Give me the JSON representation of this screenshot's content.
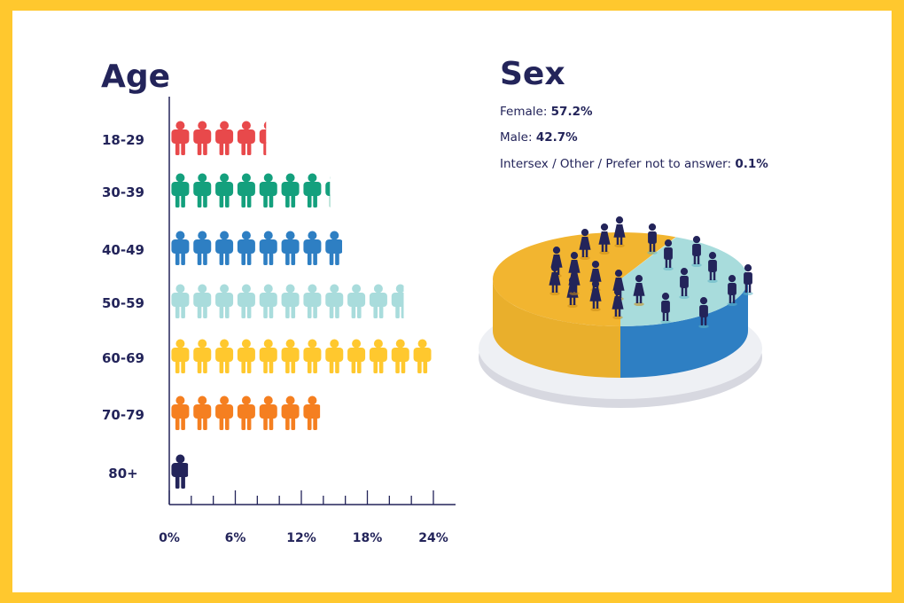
{
  "colors": {
    "border": "#FFC82E",
    "text": "#23245a",
    "18-29": "#E8494B",
    "30-39": "#14A07D",
    "40-49": "#2E7FC3",
    "50-59": "#A9DCDC",
    "60-69": "#FFC82E",
    "70-79": "#F57F20",
    "80+": "#23245a",
    "female": "#F2B530",
    "male": "#3F8FCB",
    "male_top": "#A8DCDC"
  },
  "chart_data": [
    {
      "type": "bar",
      "title": "Age",
      "categories": [
        "18-29",
        "30-39",
        "40-49",
        "50-59",
        "60-69",
        "70-79",
        "80+"
      ],
      "values": [
        8.8,
        14.6,
        15.7,
        21.3,
        23.8,
        13.7,
        1.7
      ],
      "xlim": [
        0,
        26
      ],
      "x_ticks": [
        "0%",
        "6%",
        "12%",
        "18%",
        "24%"
      ],
      "icon": "person-icon",
      "icon_unit_percent": 2
    },
    {
      "type": "pie",
      "title": "Sex",
      "slices": [
        {
          "label": "Female",
          "value": 57.2,
          "text": "57.2%"
        },
        {
          "label": "Male",
          "value": 42.7,
          "text": "42.7%"
        },
        {
          "label": "Intersex / Other / Prefer not to answer",
          "value": 0.1,
          "text": "0.1%"
        }
      ]
    }
  ]
}
